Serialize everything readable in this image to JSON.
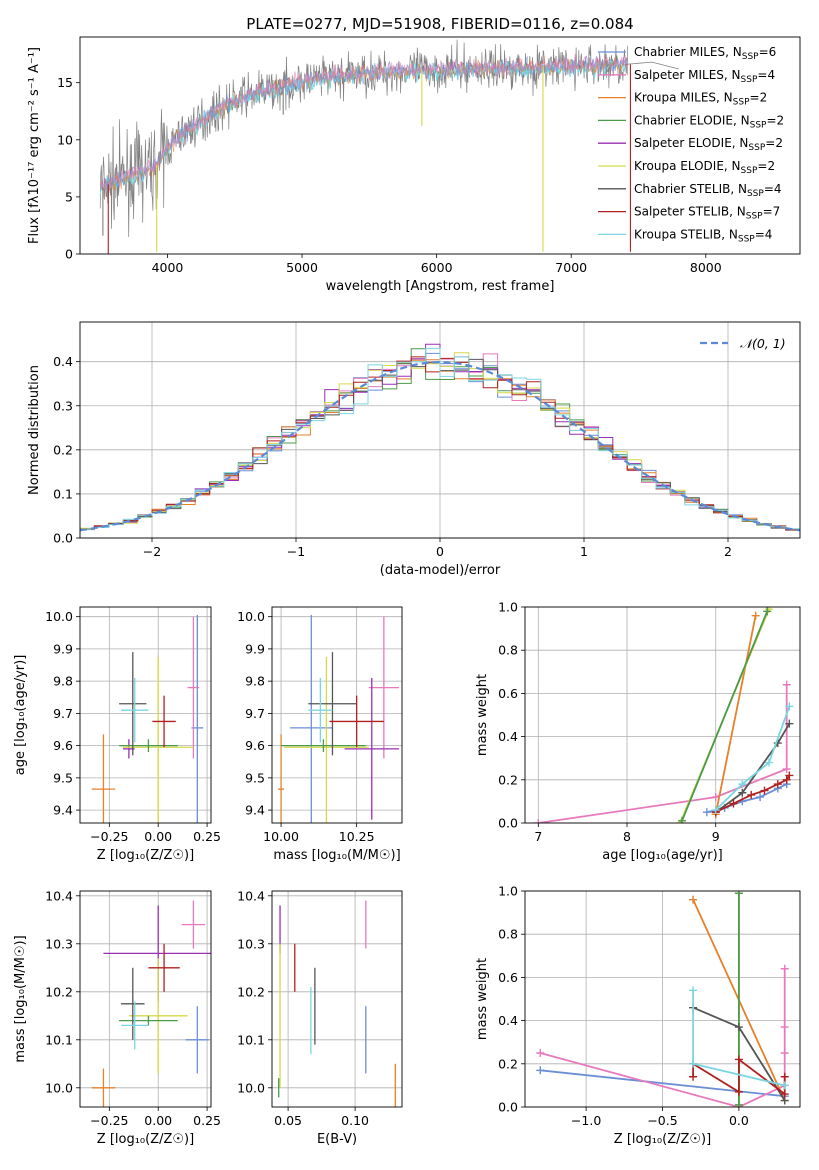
{
  "figure_title": "PLATE=0277, MJD=51908, FIBERID=0116, z=0.084",
  "colors": {
    "Chabrier MILES": "#6b8fd6",
    "Salpeter MILES": "#e879bd",
    "Kroupa MILES": "#e6802a",
    "Chabrier ELODIE": "#4b9a4b",
    "Salpeter ELODIE": "#9a2fb5",
    "Kroupa ELODIE": "#d4d94a",
    "Chabrier STELIB": "#555555",
    "Salpeter STELIB": "#b02020",
    "Kroupa STELIB": "#7ad6e0"
  },
  "chart_data": [
    {
      "type": "line",
      "title": "PLATE=0277, MJD=51908, FIBERID=0116, z=0.084",
      "xlabel": "wavelength [Angstrom, rest frame]",
      "ylabel": "Flux [fλ10⁻¹⁷ erg cm⁻² s⁻¹ A⁻¹]",
      "xlim": [
        3350,
        8700
      ],
      "ylim": [
        0,
        19
      ],
      "xticks": [
        4000,
        5000,
        6000,
        7000,
        8000
      ],
      "yticks": [
        0,
        5,
        10,
        15
      ],
      "grid": false,
      "legend_position": "right",
      "legend": [
        {
          "label": "Chabrier MILES, N",
          "sub": "SSP",
          "tail": "=6",
          "color": "#6b8fd6"
        },
        {
          "label": "Salpeter MILES, N",
          "sub": "SSP",
          "tail": "=4",
          "color": "#e879bd"
        },
        {
          "label": "Kroupa MILES, N",
          "sub": "SSP",
          "tail": "=2",
          "color": "#e6802a"
        },
        {
          "label": "Chabrier ELODIE, N",
          "sub": "SSP",
          "tail": "=2",
          "color": "#4b9a4b"
        },
        {
          "label": "Salpeter ELODIE, N",
          "sub": "SSP",
          "tail": "=2",
          "color": "#9a2fb5"
        },
        {
          "label": "Kroupa ELODIE, N",
          "sub": "SSP",
          "tail": "=2",
          "color": "#d4d94a"
        },
        {
          "label": "Chabrier STELIB, N",
          "sub": "SSP",
          "tail": "=4",
          "color": "#555555"
        },
        {
          "label": "Salpeter STELIB, N",
          "sub": "SSP",
          "tail": "=7",
          "color": "#b02020"
        },
        {
          "label": "Kroupa STELIB, N",
          "sub": "SSP",
          "tail": "=4",
          "color": "#7ad6e0"
        }
      ],
      "data_color": "#808080",
      "model_color": "#7ad6e0",
      "continuum": {
        "x": [
          3500,
          3600,
          3700,
          3800,
          3900,
          4000,
          4100,
          4200,
          4300,
          4400,
          4500,
          4600,
          4700,
          4800,
          4900,
          5000,
          5100,
          5200,
          5300,
          5400,
          5500,
          5600,
          5700,
          5800,
          5900,
          6000,
          6100,
          6200,
          6300,
          6400,
          6500,
          6600,
          6700,
          6800,
          6900,
          7000,
          7100,
          7200,
          7300,
          7400
        ],
        "y": [
          5.8,
          6.3,
          6.8,
          7.2,
          7.5,
          9.2,
          10.5,
          11.2,
          12.1,
          12.8,
          13.4,
          13.9,
          14.2,
          14.5,
          14.8,
          15.1,
          15.3,
          15.5,
          15.6,
          15.7,
          15.8,
          15.9,
          16.0,
          16.0,
          16.1,
          16.1,
          16.2,
          16.2,
          16.2,
          16.3,
          16.3,
          16.3,
          16.3,
          16.4,
          16.4,
          16.4,
          16.5,
          16.5,
          16.5,
          16.6
        ]
      },
      "model_tail": {
        "x": [
          7400,
          7600,
          7800
        ],
        "y": [
          16.6,
          16.8,
          16.2
        ]
      },
      "dips": [
        {
          "x": 3920,
          "y": 0.2,
          "color": "#d4d94a"
        },
        {
          "x": 6790,
          "y": 0.2,
          "color": "#d4d94a"
        },
        {
          "x": 5890,
          "y": 11.2,
          "color": "#d4d94a"
        },
        {
          "x": 7440,
          "y": 0.2,
          "color": "#b02020"
        },
        {
          "x": 3560,
          "y": 0.0,
          "color": "#b02020"
        },
        {
          "x": 3520,
          "y": 1.6,
          "color": "#808080"
        },
        {
          "x": 6560,
          "y": 14.5,
          "color": "#808080"
        },
        {
          "x": 4860,
          "y": 12.2,
          "color": "#808080"
        }
      ]
    },
    {
      "type": "histogram",
      "xlabel": "(data-model)/error",
      "ylabel": "Normed distribution",
      "xlim": [
        -2.5,
        2.5
      ],
      "ylim": [
        0,
        0.49
      ],
      "xticks": [
        -2,
        -1,
        0,
        1,
        2
      ],
      "yticks": [
        0.0,
        0.1,
        0.2,
        0.3,
        0.4
      ],
      "grid": true,
      "bin_edges": [
        -2.5,
        -2.4,
        -2.3,
        -2.2,
        -2.1,
        -2.0,
        -1.9,
        -1.8,
        -1.7,
        -1.6,
        -1.5,
        -1.4,
        -1.3,
        -1.2,
        -1.1,
        -1.0,
        -0.9,
        -0.8,
        -0.7,
        -0.6,
        -0.5,
        -0.4,
        -0.3,
        -0.2,
        -0.1,
        0.0,
        0.1,
        0.2,
        0.3,
        0.4,
        0.5,
        0.6,
        0.7,
        0.8,
        0.9,
        1.0,
        1.1,
        1.2,
        1.3,
        1.4,
        1.5,
        1.6,
        1.7,
        1.8,
        1.9,
        2.0,
        2.1,
        2.2,
        2.3,
        2.4,
        2.5
      ],
      "gaussian": {
        "label": "𝒩(0, 1)",
        "color": "#5b8ad6"
      },
      "legend_position": "top-right"
    },
    {
      "type": "scatter",
      "xlabel": "Z [log₁₀(Z/Z☉)]",
      "ylabel": "age  [log₁₀(age/yr)]",
      "xlim": [
        -0.4,
        0.27
      ],
      "ylim": [
        9.36,
        10.03
      ],
      "xticks": [
        -0.25,
        0.0,
        0.25
      ],
      "yticks": [
        9.4,
        9.5,
        9.6,
        9.7,
        9.8,
        9.9,
        10.0
      ],
      "grid": true,
      "points": [
        {
          "color": "#e6802a",
          "x": -0.28,
          "xerr": 0.06,
          "y": 9.465,
          "yerr": 0.17
        },
        {
          "color": "#6b8fd6",
          "x": 0.2,
          "xerr": 0.03,
          "y": 9.655,
          "yerr": 0.35
        },
        {
          "color": "#e879bd",
          "x": 0.18,
          "xerr": 0.03,
          "y": 9.78,
          "yerr": 0.22
        },
        {
          "color": "#9a2fb5",
          "x": -0.15,
          "xerr": 0.03,
          "y": 9.59,
          "yerr": 0.03
        },
        {
          "color": "#d4d94a",
          "x": 0.0,
          "xerr": 0.18,
          "y": 9.595,
          "yerr": 0.28
        },
        {
          "color": "#4b9a4b",
          "x": -0.05,
          "xerr": 0.15,
          "y": 9.6,
          "yerr": 0.02
        },
        {
          "color": "#555555",
          "x": -0.13,
          "xerr": 0.07,
          "y": 9.73,
          "yerr": 0.16
        },
        {
          "color": "#b02020",
          "x": 0.03,
          "xerr": 0.06,
          "y": 9.675,
          "yerr": 0.08
        },
        {
          "color": "#7ad6e0",
          "x": -0.12,
          "xerr": 0.07,
          "y": 9.71,
          "yerr": 0.1
        }
      ]
    },
    {
      "type": "scatter",
      "xlabel": "mass [log₁₀(M/M☉)]",
      "ylabel": "",
      "xlim": [
        9.97,
        10.4
      ],
      "ylim": [
        9.36,
        10.03
      ],
      "xticks": [
        10.0,
        10.25
      ],
      "yticks": [
        9.4,
        9.5,
        9.6,
        9.7,
        9.8,
        9.9,
        10.0
      ],
      "grid": true,
      "points": [
        {
          "color": "#e6802a",
          "x": 10.0,
          "xerr": 0.01,
          "y": 9.465,
          "yerr": 0.17
        },
        {
          "color": "#6b8fd6",
          "x": 10.1,
          "xerr": 0.07,
          "y": 9.655,
          "yerr": 0.35
        },
        {
          "color": "#e879bd",
          "x": 10.34,
          "xerr": 0.05,
          "y": 9.78,
          "yerr": 0.22
        },
        {
          "color": "#9a2fb5",
          "x": 10.3,
          "xerr": 0.09,
          "y": 9.59,
          "yerr": 0.22
        },
        {
          "color": "#d4d94a",
          "x": 10.15,
          "xerr": 0.14,
          "y": 9.595,
          "yerr": 0.28
        },
        {
          "color": "#4b9a4b",
          "x": 10.14,
          "xerr": 0.14,
          "y": 9.6,
          "yerr": 0.02
        },
        {
          "color": "#555555",
          "x": 10.17,
          "xerr": 0.08,
          "y": 9.73,
          "yerr": 0.16
        },
        {
          "color": "#b02020",
          "x": 10.25,
          "xerr": 0.09,
          "y": 9.675,
          "yerr": 0.08
        },
        {
          "color": "#7ad6e0",
          "x": 10.13,
          "xerr": 0.04,
          "y": 9.71,
          "yerr": 0.1
        }
      ]
    },
    {
      "type": "line",
      "xlabel": "age  [log₁₀(age/yr)]",
      "ylabel": "mass weight",
      "xlim": [
        6.85,
        9.95
      ],
      "ylim": [
        0,
        1.0
      ],
      "xticks": [
        7,
        8,
        9
      ],
      "yticks": [
        0.0,
        0.2,
        0.4,
        0.6,
        0.8,
        1.0
      ],
      "grid": true,
      "series": [
        {
          "color": "#e879bd",
          "x": [
            7.0,
            9.0,
            9.8,
            9.8
          ],
          "y": [
            0.0,
            0.12,
            0.25,
            0.64
          ]
        },
        {
          "color": "#6b8fd6",
          "x": [
            8.9,
            9.1,
            9.3,
            9.5,
            9.7,
            9.8
          ],
          "y": [
            0.05,
            0.07,
            0.1,
            0.12,
            0.16,
            0.18
          ]
        },
        {
          "color": "#e6802a",
          "x": [
            9.0,
            9.45
          ],
          "y": [
            0.04,
            0.96
          ]
        },
        {
          "color": "#d4d94a",
          "x": [
            8.6,
            9.6
          ],
          "y": [
            0.0,
            0.99
          ]
        },
        {
          "color": "#4b9a4b",
          "x": [
            8.62,
            9.58
          ],
          "y": [
            0.01,
            0.98
          ]
        },
        {
          "color": "#555555",
          "x": [
            9.0,
            9.3,
            9.7,
            9.83
          ],
          "y": [
            0.05,
            0.14,
            0.37,
            0.46
          ]
        },
        {
          "color": "#b02020",
          "x": [
            9.0,
            9.2,
            9.4,
            9.55,
            9.7,
            9.8,
            9.83
          ],
          "y": [
            0.05,
            0.09,
            0.13,
            0.15,
            0.18,
            0.2,
            0.22
          ]
        },
        {
          "color": "#7ad6e0",
          "x": [
            9.0,
            9.3,
            9.6,
            9.83
          ],
          "y": [
            0.06,
            0.18,
            0.28,
            0.54
          ]
        }
      ]
    },
    {
      "type": "scatter",
      "xlabel": "Z [log₁₀(Z/Z☉)]",
      "ylabel": "mass [log₁₀(M/M☉)]",
      "xlim": [
        -0.4,
        0.27
      ],
      "ylim": [
        9.96,
        10.41
      ],
      "xticks": [
        -0.25,
        0.0,
        0.25
      ],
      "yticks": [
        10.0,
        10.1,
        10.2,
        10.3,
        10.4
      ],
      "grid": true,
      "points": [
        {
          "color": "#e6802a",
          "x": -0.28,
          "xerr": 0.06,
          "y": 10.0,
          "yerr": 0.04
        },
        {
          "color": "#6b8fd6",
          "x": 0.2,
          "xerr": 0.06,
          "y": 10.1,
          "yerr": 0.07
        },
        {
          "color": "#e879bd",
          "x": 0.18,
          "xerr": 0.06,
          "y": 10.34,
          "yerr": 0.05
        },
        {
          "color": "#9a2fb5",
          "x": 0.0,
          "xerr": 0.28,
          "y": 10.28,
          "yerr": 0.1
        },
        {
          "color": "#d4d94a",
          "x": 0.0,
          "xerr": 0.15,
          "y": 10.15,
          "yerr": 0.12
        },
        {
          "color": "#4b9a4b",
          "x": -0.05,
          "xerr": 0.15,
          "y": 10.14,
          "yerr": 0.01
        },
        {
          "color": "#555555",
          "x": -0.13,
          "xerr": 0.06,
          "y": 10.175,
          "yerr": 0.075
        },
        {
          "color": "#b02020",
          "x": 0.03,
          "xerr": 0.08,
          "y": 10.25,
          "yerr": 0.05
        },
        {
          "color": "#7ad6e0",
          "x": -0.12,
          "xerr": 0.07,
          "y": 10.13,
          "yerr": 0.05
        }
      ]
    },
    {
      "type": "scatter",
      "xlabel": "E(B-V)",
      "ylabel": "",
      "xlim": [
        0.038,
        0.135
      ],
      "ylim": [
        9.96,
        10.41
      ],
      "xticks": [
        0.05,
        0.1
      ],
      "yticks": [
        10.0,
        10.1,
        10.2,
        10.3,
        10.4
      ],
      "grid": true,
      "points": [
        {
          "color": "#e6802a",
          "x": 0.13,
          "xerr": 0.0,
          "y": 10.0,
          "yerr": 0.05
        },
        {
          "color": "#6b8fd6",
          "x": 0.108,
          "xerr": 0.0,
          "y": 10.1,
          "yerr": 0.07
        },
        {
          "color": "#e879bd",
          "x": 0.108,
          "xerr": 0.0,
          "y": 10.34,
          "yerr": 0.05
        },
        {
          "color": "#9a2fb5",
          "x": 0.044,
          "xerr": 0.0,
          "y": 10.33,
          "yerr": 0.05
        },
        {
          "color": "#d4d94a",
          "x": 0.044,
          "xerr": 0.0,
          "y": 10.15,
          "yerr": 0.15
        },
        {
          "color": "#4b9a4b",
          "x": 0.043,
          "xerr": 0.0,
          "y": 10.0,
          "yerr": 0.02
        },
        {
          "color": "#555555",
          "x": 0.07,
          "xerr": 0.0,
          "y": 10.17,
          "yerr": 0.08
        },
        {
          "color": "#b02020",
          "x": 0.055,
          "xerr": 0.0,
          "y": 10.25,
          "yerr": 0.05
        },
        {
          "color": "#7ad6e0",
          "x": 0.067,
          "xerr": 0.0,
          "y": 10.14,
          "yerr": 0.07
        }
      ]
    },
    {
      "type": "line",
      "xlabel": "Z [log₁₀(Z/Z☉)]",
      "ylabel": "mass weight",
      "xlim": [
        -1.4,
        0.4
      ],
      "ylim": [
        0,
        1.0
      ],
      "xticks": [
        -1.0,
        -0.5,
        0.0
      ],
      "yticks": [
        0.0,
        0.2,
        0.4,
        0.6,
        0.8,
        1.0
      ],
      "grid": true,
      "series": [
        {
          "color": "#6b8fd6",
          "x": [
            -1.3,
            0.3
          ],
          "y": [
            0.17,
            0.05
          ]
        },
        {
          "color": "#e879bd",
          "x": [
            -1.3,
            0.0,
            0.3,
            0.3,
            0.3,
            0.3
          ],
          "y": [
            0.25,
            0.0,
            0.1,
            0.25,
            0.37,
            0.64
          ]
        },
        {
          "color": "#e6802a",
          "x": [
            -0.3,
            0.3
          ],
          "y": [
            0.96,
            0.03
          ]
        },
        {
          "color": "#d4d94a",
          "x": [
            0.0,
            0.0
          ],
          "y": [
            0.0,
            0.99
          ]
        },
        {
          "color": "#4b9a4b",
          "x": [
            0.0,
            0.0
          ],
          "y": [
            0.01,
            0.99
          ]
        },
        {
          "color": "#555555",
          "x": [
            -0.3,
            0.0,
            0.3
          ],
          "y": [
            0.46,
            0.37,
            0.03
          ]
        },
        {
          "color": "#b02020",
          "x": [
            -0.3,
            -0.3,
            0.0,
            0.0,
            0.3,
            0.3
          ],
          "y": [
            0.14,
            0.2,
            0.07,
            0.22,
            0.06,
            0.14
          ]
        },
        {
          "color": "#7ad6e0",
          "x": [
            -0.3,
            -0.3,
            0.3
          ],
          "y": [
            0.54,
            0.2,
            0.1
          ]
        }
      ]
    }
  ]
}
